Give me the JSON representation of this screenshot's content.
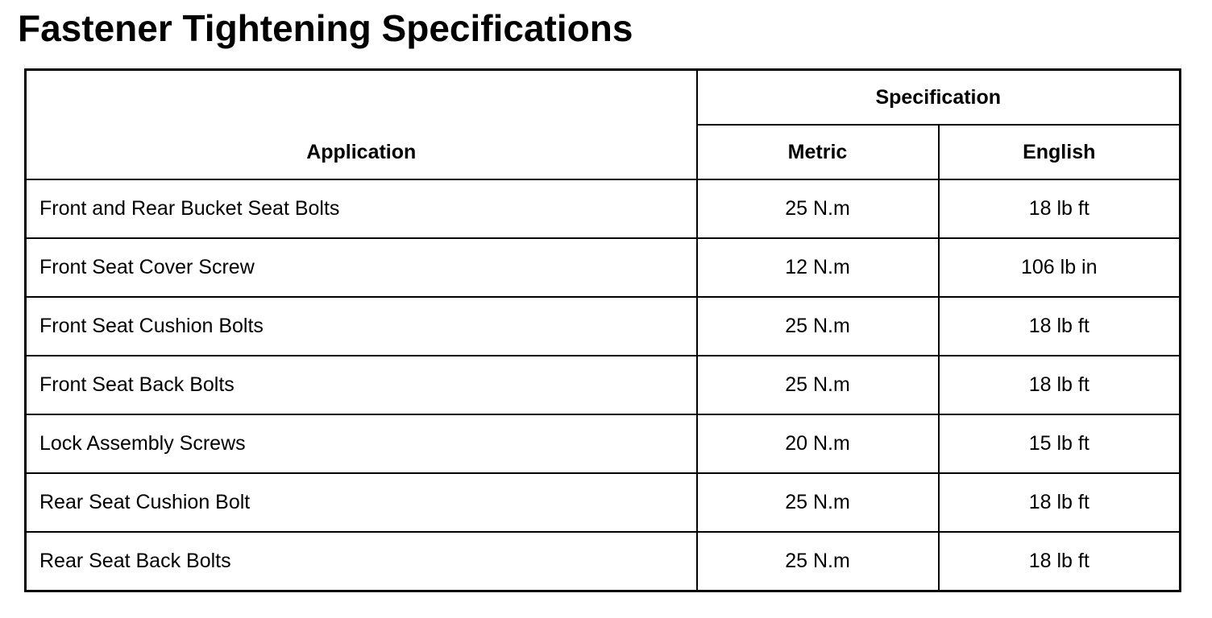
{
  "title": "Fastener Tightening Specifications",
  "headers": {
    "application": "Application",
    "specification": "Specification",
    "metric": "Metric",
    "english": "English"
  },
  "rows": [
    {
      "application": "Front and Rear Bucket Seat Bolts",
      "metric": "25 N.m",
      "english": "18 lb ft"
    },
    {
      "application": "Front Seat Cover Screw",
      "metric": "12 N.m",
      "english": "106 lb in"
    },
    {
      "application": "Front Seat Cushion Bolts",
      "metric": "25 N.m",
      "english": "18 lb ft"
    },
    {
      "application": "Front Seat Back Bolts",
      "metric": "25 N.m",
      "english": "18 lb ft"
    },
    {
      "application": "Lock Assembly Screws",
      "metric": "20 N.m",
      "english": "15 lb ft"
    },
    {
      "application": "Rear Seat Cushion Bolt",
      "metric": "25 N.m",
      "english": "18 lb ft"
    },
    {
      "application": "Rear Seat Back Bolts",
      "metric": "25 N.m",
      "english": "18 lb ft"
    }
  ]
}
